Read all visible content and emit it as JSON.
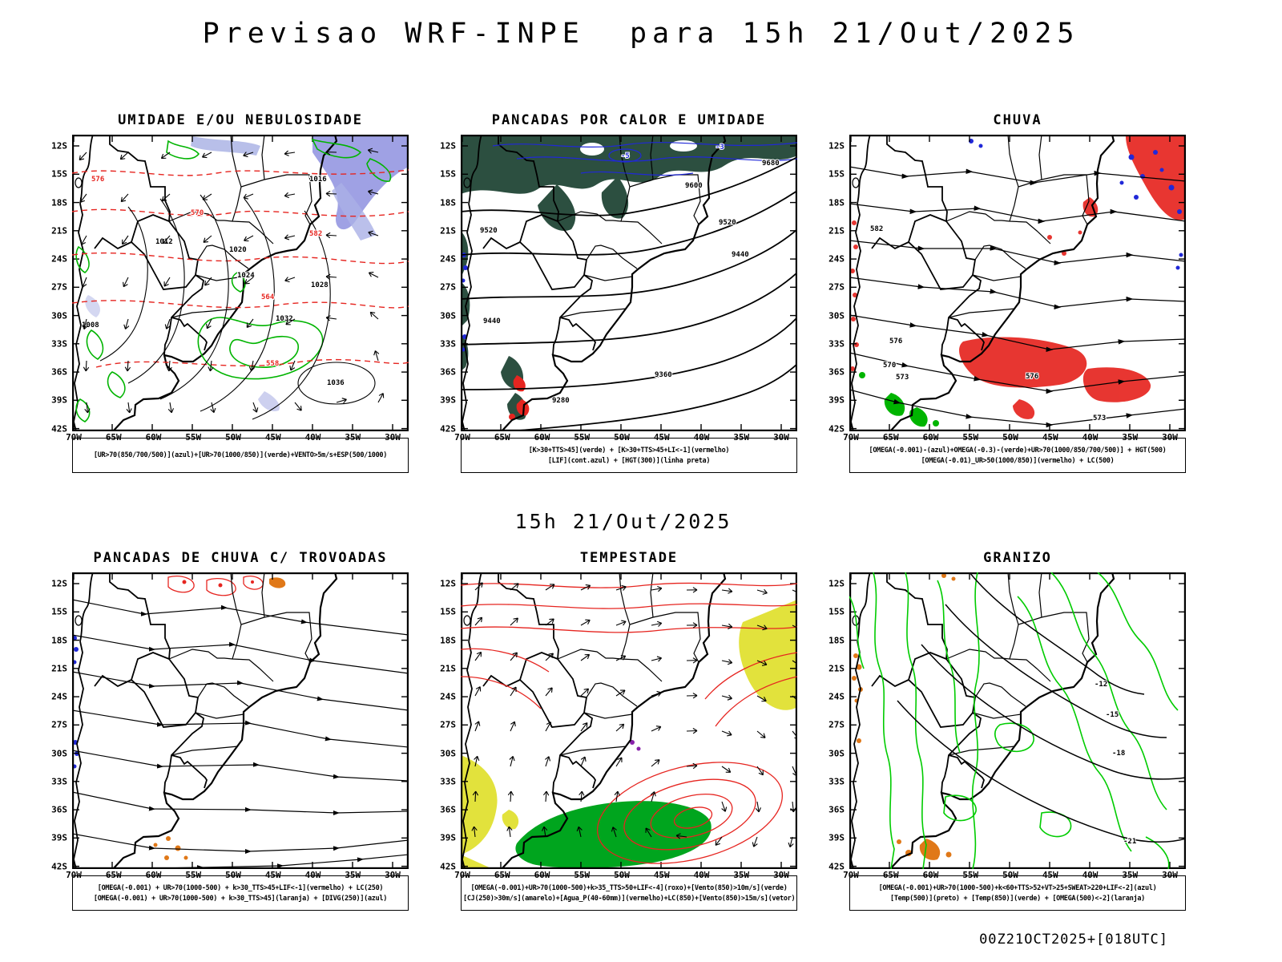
{
  "header": {
    "title": "Previsao WRF-INPE  para 15h 21/Out/2025"
  },
  "mid_label": "15h 21/Out/2025",
  "footer": "00Z21OCT2025+[018UTC]",
  "axes": {
    "lat_ticks": [
      "12S",
      "15S",
      "18S",
      "21S",
      "24S",
      "27S",
      "30S",
      "33S",
      "36S",
      "39S",
      "42S"
    ],
    "lon_ticks": [
      "70W",
      "65W",
      "60W",
      "55W",
      "50W",
      "45W",
      "40W",
      "35W",
      "30W"
    ]
  },
  "colors": {
    "map_green": "#00b400",
    "map_red": "#e62520",
    "map_blue": "#2028d8",
    "map_orange": "#e07818",
    "map_yellow": "#e2e23c",
    "map_darkgreen": "#2c4f40",
    "map_purple": "#8486dc"
  },
  "panels": [
    {
      "title": "UMIDADE E/OU NEBULOSIDADE",
      "caption_lines": [
        "[UR>70(850/700/500)](azul)+[UR>70(1000/850)](verde)+VENTO>5m/s+ESP(500/1000)"
      ],
      "contour_labels": [
        "576",
        "570",
        "582",
        "564",
        "558",
        "1008",
        "1012",
        "1016",
        "1020",
        "1024",
        "1028",
        "1032",
        "1036"
      ]
    },
    {
      "title": "PANCADAS POR CALOR E UMIDADE",
      "caption_lines": [
        "[K>30+TTS>45](verde) + [K>30+TTS>45+LI<-1](vermelho)",
        "[LIF](cont.azul) + [HGT(300)](linha preta)"
      ],
      "contour_labels": [
        "9680",
        "9600",
        "9520",
        "9440",
        "9360",
        "9280",
        "9520",
        "9440",
        "-5",
        "-3"
      ]
    },
    {
      "title": "CHUVA",
      "caption_lines": [
        "[OMEGA(-0.001)-(azul)+OMEGA(-0.3)-(verde)+UR>70(1000/850/700/500)] + HGT(500)",
        "[OMEGA(-0.01)_UR>50(1000/850)](vermelho) + LC(500)"
      ],
      "contour_labels": [
        "582",
        "576",
        "570",
        "573",
        "576",
        "573"
      ]
    },
    {
      "title": "PANCADAS DE CHUVA C/ TROVOADAS",
      "caption_lines": [
        "[OMEGA(-0.001) + UR>70(1000-500) + k>30_TTS>45+LIF<-1](vermelho) + LC(250)",
        "[OMEGA(-0.001) + UR>70(1000-500) + k>30_TTS>45](laranja) + [DIVG(250)](azul)"
      ],
      "contour_labels": []
    },
    {
      "title": "TEMPESTADE",
      "caption_lines": [
        "[OMEGA(-0.001)+UR>70(1000-500)+k>35_TTS>50+LIF<-4](roxo)+[Vento(850)>10m/s](verde)",
        "[CJ(250)>30m/s](amarelo)+[Agua_P(40-60mm)](vermelho)+LC(850)+[Vento(850)>15m/s](vetor)"
      ],
      "contour_labels": []
    },
    {
      "title": "GRANIZO",
      "caption_lines": [
        "[OMEGA(-0.001)+UR>70(1000-500)+k<60+TTS>52+VT>25+SWEAT>220+LIF<-2](azul)",
        "[Temp(500)](preto) + [Temp(850)](verde) + [OMEGA(500)<-2](laranja)"
      ],
      "contour_labels": [
        "-12",
        "-15",
        "-18",
        "-21"
      ]
    }
  ]
}
